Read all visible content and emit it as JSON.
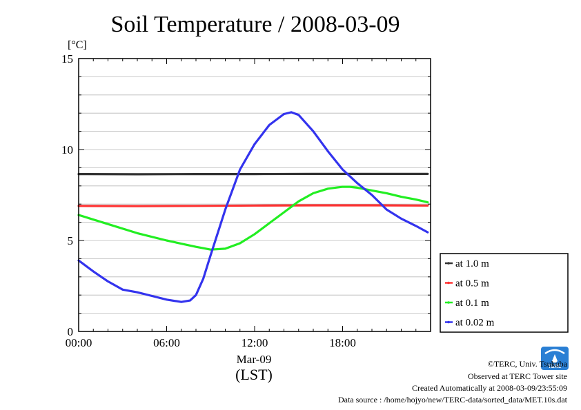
{
  "chart_data": {
    "type": "line",
    "title": "Soil Temperature / 2008-03-09",
    "ylabel": "[°C]",
    "xlabel": "(LST)",
    "date_label": "Mar-09",
    "xlim": [
      0,
      24
    ],
    "ylim": [
      0,
      15
    ],
    "grid": true,
    "legend_position": "lower-right-outside",
    "x_ticks": [
      {
        "value": 0,
        "label": "00:00"
      },
      {
        "value": 6,
        "label": "06:00"
      },
      {
        "value": 12,
        "label": "12:00"
      },
      {
        "value": 18,
        "label": "18:00"
      }
    ],
    "y_ticks": [
      {
        "value": 0,
        "label": "0"
      },
      {
        "value": 5,
        "label": "5"
      },
      {
        "value": 10,
        "label": "10"
      },
      {
        "value": 15,
        "label": "15"
      }
    ],
    "series": [
      {
        "name": "at 1.0 m",
        "color": "#333333",
        "x": [
          0,
          4,
          8,
          12,
          16,
          20,
          23.8
        ],
        "y": [
          8.65,
          8.64,
          8.65,
          8.65,
          8.66,
          8.66,
          8.66
        ]
      },
      {
        "name": "at 0.5 m",
        "color": "#ff3333",
        "x": [
          0,
          4,
          8,
          12,
          16,
          20,
          23.8
        ],
        "y": [
          6.9,
          6.89,
          6.9,
          6.92,
          6.93,
          6.93,
          6.92
        ]
      },
      {
        "name": "at 0.1 m",
        "color": "#22ee22",
        "x": [
          0,
          2,
          4,
          6,
          8,
          9,
          10,
          11,
          12,
          13,
          14,
          15,
          16,
          17,
          18,
          18.5,
          19,
          20,
          21,
          22,
          23,
          23.8
        ],
        "y": [
          6.4,
          5.9,
          5.4,
          5.0,
          4.65,
          4.5,
          4.55,
          4.85,
          5.35,
          5.95,
          6.55,
          7.15,
          7.6,
          7.85,
          7.95,
          7.95,
          7.9,
          7.75,
          7.6,
          7.4,
          7.25,
          7.1
        ]
      },
      {
        "name": "at 0.02 m",
        "color": "#3333ee",
        "x": [
          0,
          1,
          2,
          3,
          4,
          5,
          6,
          7,
          7.6,
          8,
          8.5,
          9,
          10,
          11,
          12,
          13,
          14,
          14.5,
          15,
          16,
          17,
          18,
          19,
          20,
          21,
          22,
          23,
          23.8
        ],
        "y": [
          3.9,
          3.3,
          2.75,
          2.3,
          2.15,
          1.95,
          1.75,
          1.62,
          1.7,
          2.0,
          2.9,
          4.2,
          6.7,
          8.9,
          10.3,
          11.35,
          11.95,
          12.05,
          11.9,
          11.0,
          9.9,
          8.9,
          8.15,
          7.5,
          6.7,
          6.2,
          5.8,
          5.45
        ]
      }
    ]
  },
  "credits": {
    "copyright": "©TERC, Univ. Tsukuba",
    "observed": "Observed at TERC Tower site",
    "created": "Created Automatically at 2008-03-09/23:55:09",
    "source": "Data source : /home/hojyo/new/TERC-data/sorted_data/MET.10s.dat"
  },
  "logo": {
    "text": "TERC",
    "color": "#2a7fd4"
  }
}
